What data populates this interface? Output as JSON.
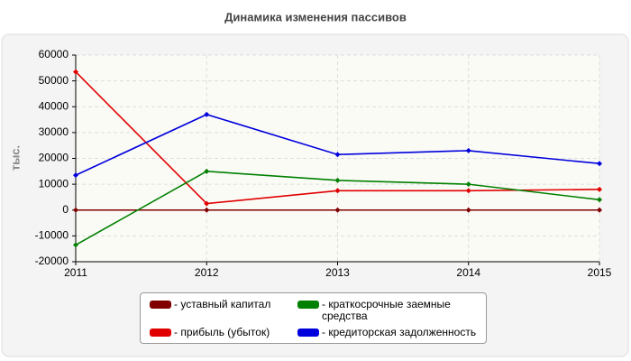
{
  "chart_data": {
    "type": "line",
    "title": "Динамика изменения пассивов",
    "y_label": "тыс.",
    "x": [
      2011,
      2012,
      2013,
      2014,
      2015
    ],
    "xlim": [
      2011,
      2015
    ],
    "xticks": [
      2011,
      2012,
      2013,
      2014,
      2015
    ],
    "ylim": [
      -20000,
      60000
    ],
    "yticks": [
      -20000,
      -10000,
      0,
      10000,
      20000,
      30000,
      40000,
      50000,
      60000
    ],
    "grid": true,
    "series": [
      {
        "name": "- уставный капитал",
        "color": "#800000",
        "values": [
          0,
          0,
          0,
          0,
          0
        ]
      },
      {
        "name": "- прибыль (убыток)",
        "color": "#e00000",
        "values": [
          53500,
          2500,
          7500,
          7500,
          8000
        ]
      },
      {
        "name": "- краткосрочные заемные средства",
        "color": "#008000",
        "values": [
          -13500,
          15000,
          11500,
          10000,
          4000
        ]
      },
      {
        "name": "- кредиторская задолженность",
        "color": "#0000dd",
        "values": [
          13500,
          37000,
          21500,
          23000,
          18000
        ]
      }
    ]
  }
}
